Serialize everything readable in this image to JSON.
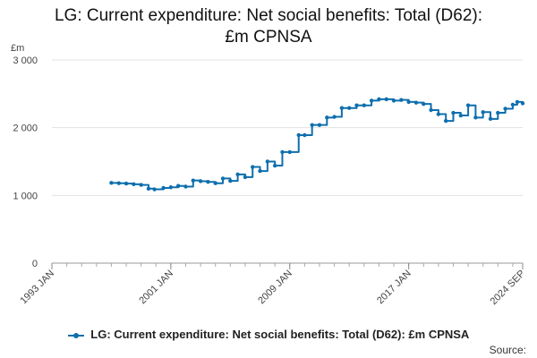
{
  "chart_data": {
    "type": "line",
    "title_lines": [
      "LG: Current expenditure: Net social benefits: Total (D62):",
      "£m CPNSA"
    ],
    "ylabel": "£m",
    "ylim": [
      0,
      3000
    ],
    "yticks": [
      0,
      1000,
      2000,
      3000
    ],
    "ytick_labels": [
      "0",
      "1 000",
      "2 000",
      "3 000"
    ],
    "xlim": [
      1993.0,
      2024.667
    ],
    "xticks": [
      1993.0,
      2001.0,
      2009.0,
      2017.0,
      2024.667
    ],
    "xtick_labels": [
      "1993 JAN",
      "2001 JAN",
      "2009 JAN",
      "2017 JAN",
      "2024 SEP"
    ],
    "grid": true,
    "color": "#0e6fae",
    "series": [
      {
        "name": "LG: Current expenditure: Net social benefits: Total (D62): £m CPNSA",
        "x": [
          1997.0,
          1997.5,
          1998.0,
          1998.5,
          1999.0,
          1999.5,
          1999.9,
          2000.5,
          2001.0,
          2001.5,
          2002.0,
          2002.5,
          2003.0,
          2003.5,
          2004.0,
          2004.5,
          2005.0,
          2005.5,
          2006.0,
          2006.5,
          2007.0,
          2007.5,
          2008.0,
          2008.5,
          2009.0,
          2009.6,
          2010.0,
          2010.5,
          2011.0,
          2011.5,
          2012.0,
          2012.5,
          2013.0,
          2013.5,
          2014.0,
          2014.5,
          2015.0,
          2015.5,
          2016.0,
          2016.5,
          2017.0,
          2017.5,
          2018.0,
          2018.5,
          2019.0,
          2019.5,
          2020.0,
          2020.5,
          2021.0,
          2021.5,
          2022.0,
          2022.5,
          2023.0,
          2023.5,
          2024.0,
          2024.3,
          2024.667
        ],
        "values": [
          1185,
          1180,
          1175,
          1165,
          1155,
          1100,
          1090,
          1110,
          1120,
          1140,
          1130,
          1220,
          1210,
          1200,
          1180,
          1250,
          1215,
          1310,
          1270,
          1420,
          1360,
          1500,
          1440,
          1640,
          1640,
          1890,
          1890,
          2040,
          2040,
          2150,
          2160,
          2290,
          2290,
          2330,
          2330,
          2400,
          2420,
          2420,
          2400,
          2410,
          2380,
          2370,
          2350,
          2260,
          2200,
          2100,
          2220,
          2180,
          2330,
          2150,
          2230,
          2130,
          2220,
          2280,
          2340,
          2380,
          2360
        ]
      }
    ]
  },
  "legend": {
    "label": "LG: Current expenditure: Net social benefits: Total (D62): £m CPNSA"
  },
  "source_label": "Source:"
}
